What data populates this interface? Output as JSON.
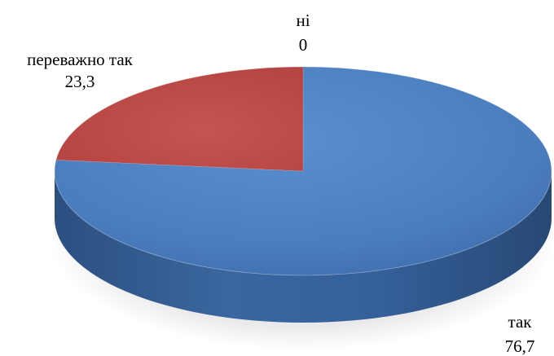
{
  "chart_data": {
    "type": "pie",
    "title": "",
    "three_d": true,
    "categories": [
      "так",
      "переважно так",
      "ні"
    ],
    "values": [
      76.7,
      23.3,
      0
    ],
    "value_labels": [
      "76,7",
      "23,3",
      "0"
    ],
    "colors": [
      "#4F81BD",
      "#C0504D",
      "#9BBB59"
    ],
    "legend": "none"
  }
}
